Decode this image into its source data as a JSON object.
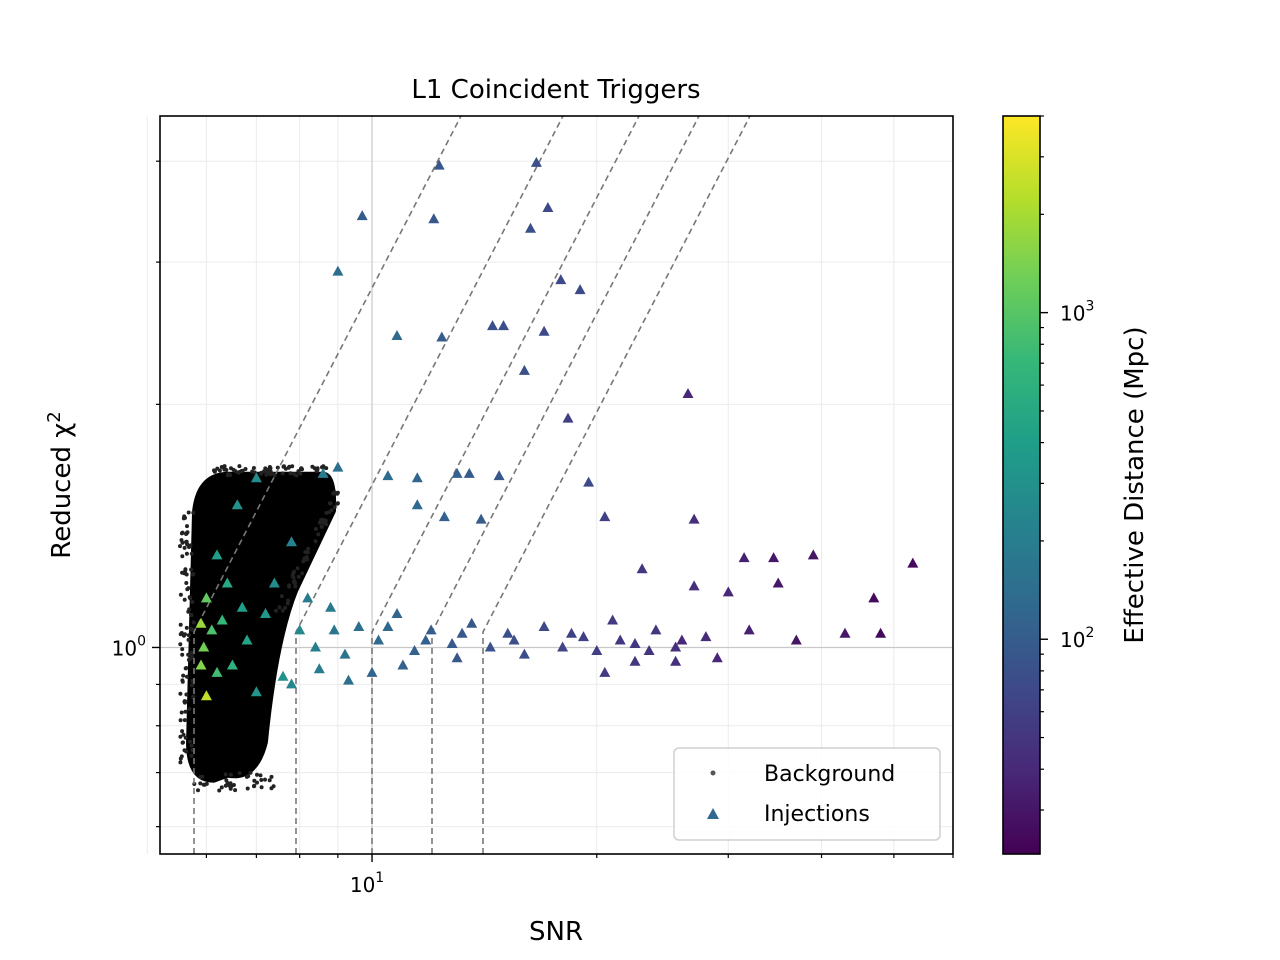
{
  "chart_data": {
    "type": "scatter",
    "title": "L1 Coincident Triggers",
    "xlabel": "SNR",
    "ylabel": "Reduced χ²",
    "xscale": "log",
    "yscale": "log",
    "xlim": [
      5.2,
      60
    ],
    "ylim": [
      0.555,
      4.55
    ],
    "x_tick_labels": [
      {
        "value": 10,
        "base": "10",
        "exp": "1"
      }
    ],
    "y_tick_labels": [
      {
        "value": 1,
        "base": "10",
        "exp": "0"
      }
    ],
    "grid": true,
    "legend": {
      "placement": "lower-right",
      "entries": [
        "Background",
        "Injections"
      ]
    },
    "colorbar": {
      "label": "Effective Distance (Mpc)",
      "scale": "log",
      "range": [
        22,
        4000
      ],
      "colormap": "viridis",
      "tick_labels": [
        {
          "value": 100,
          "base": "10",
          "exp": "2"
        },
        {
          "value": 1000,
          "base": "10",
          "exp": "3"
        }
      ]
    },
    "background": {
      "name": "Background",
      "color": "#000000",
      "region": {
        "snr_min": 5.6,
        "snr_max": 9.0,
        "chisq_min": 0.68,
        "chisq_max": 1.65
      }
    },
    "injections": {
      "name": "Injections",
      "points": [
        [
          12.3,
          3.95,
          90
        ],
        [
          16.6,
          3.98,
          80
        ],
        [
          17.2,
          3.5,
          70
        ],
        [
          9.7,
          3.42,
          100
        ],
        [
          12.1,
          3.39,
          90
        ],
        [
          16.3,
          3.3,
          80
        ],
        [
          9.0,
          2.92,
          140
        ],
        [
          17.9,
          2.85,
          70
        ],
        [
          19.0,
          2.77,
          70
        ],
        [
          10.8,
          2.43,
          130
        ],
        [
          12.4,
          2.42,
          100
        ],
        [
          14.5,
          2.5,
          80
        ],
        [
          15.0,
          2.5,
          80
        ],
        [
          17.0,
          2.46,
          70
        ],
        [
          16.0,
          2.2,
          80
        ],
        [
          26.5,
          2.06,
          40
        ],
        [
          18.3,
          1.92,
          60
        ],
        [
          8.6,
          1.64,
          200
        ],
        [
          9.0,
          1.67,
          150
        ],
        [
          10.5,
          1.63,
          140
        ],
        [
          11.5,
          1.62,
          120
        ],
        [
          13.0,
          1.64,
          110
        ],
        [
          13.5,
          1.64,
          100
        ],
        [
          14.8,
          1.63,
          90
        ],
        [
          19.5,
          1.6,
          70
        ],
        [
          11.5,
          1.5,
          130
        ],
        [
          12.5,
          1.45,
          110
        ],
        [
          14.0,
          1.44,
          100
        ],
        [
          20.5,
          1.45,
          60
        ],
        [
          27.0,
          1.44,
          45
        ],
        [
          31.5,
          1.29,
          35
        ],
        [
          34.5,
          1.29,
          30
        ],
        [
          39.0,
          1.3,
          30
        ],
        [
          53.0,
          1.27,
          25
        ],
        [
          23.0,
          1.25,
          50
        ],
        [
          35.0,
          1.2,
          30
        ],
        [
          47.0,
          1.15,
          25
        ],
        [
          27.0,
          1.19,
          45
        ],
        [
          30.0,
          1.17,
          40
        ],
        [
          37.0,
          1.02,
          30
        ],
        [
          43.0,
          1.04,
          30
        ],
        [
          48.0,
          1.04,
          25
        ],
        [
          26.0,
          1.02,
          40
        ],
        [
          29.0,
          0.97,
          40
        ],
        [
          22.5,
          0.96,
          50
        ],
        [
          25.5,
          0.96,
          45
        ],
        [
          20.5,
          0.93,
          55
        ],
        [
          13.0,
          0.97,
          90
        ],
        [
          10.0,
          0.93,
          120
        ],
        [
          11.0,
          0.95,
          110
        ],
        [
          6.0,
          0.87,
          2500
        ],
        [
          5.9,
          1.07,
          1800
        ],
        [
          5.95,
          1.0,
          1300
        ],
        [
          6.1,
          1.05,
          900
        ],
        [
          6.3,
          1.08,
          700
        ],
        [
          6.5,
          0.95,
          600
        ],
        [
          6.8,
          1.02,
          450
        ],
        [
          7.2,
          1.1,
          350
        ],
        [
          7.6,
          0.92,
          300
        ],
        [
          8.0,
          1.05,
          250
        ],
        [
          8.4,
          1.0,
          200
        ],
        [
          8.8,
          1.12,
          180
        ],
        [
          9.2,
          0.98,
          160
        ],
        [
          9.6,
          1.06,
          150
        ],
        [
          10.2,
          1.02,
          130
        ],
        [
          10.8,
          1.1,
          120
        ],
        [
          11.4,
          0.99,
          110
        ],
        [
          12.0,
          1.05,
          100
        ],
        [
          12.8,
          1.01,
          95
        ],
        [
          13.6,
          1.07,
          90
        ],
        [
          14.4,
          1.0,
          85
        ],
        [
          15.2,
          1.04,
          80
        ],
        [
          16.0,
          0.98,
          75
        ],
        [
          17.0,
          1.06,
          70
        ],
        [
          18.0,
          1.0,
          65
        ],
        [
          19.2,
          1.03,
          60
        ],
        [
          20.0,
          0.99,
          58
        ],
        [
          21.0,
          1.08,
          55
        ],
        [
          22.5,
          1.01,
          50
        ],
        [
          24.0,
          1.05,
          48
        ],
        [
          25.5,
          1.0,
          45
        ],
        [
          6.2,
          1.3,
          400
        ],
        [
          6.6,
          1.5,
          300
        ],
        [
          7.0,
          1.62,
          260
        ],
        [
          7.4,
          1.2,
          280
        ],
        [
          7.8,
          1.35,
          220
        ],
        [
          8.2,
          1.15,
          190
        ],
        [
          6.4,
          1.2,
          500
        ],
        [
          7.0,
          0.88,
          320
        ],
        [
          7.8,
          0.9,
          240
        ],
        [
          8.5,
          0.94,
          190
        ],
        [
          9.3,
          0.91,
          150
        ],
        [
          6.2,
          0.93,
          800
        ],
        [
          6.0,
          1.15,
          1100
        ],
        [
          5.9,
          0.95,
          1500
        ],
        [
          6.7,
          1.12,
          400
        ],
        [
          8.9,
          1.05,
          170
        ],
        [
          10.5,
          1.06,
          125
        ],
        [
          11.8,
          1.02,
          105
        ],
        [
          13.2,
          1.04,
          92
        ],
        [
          15.5,
          1.02,
          78
        ],
        [
          18.5,
          1.04,
          62
        ],
        [
          21.5,
          1.02,
          52
        ],
        [
          23.5,
          0.99,
          48
        ],
        [
          28.0,
          1.03,
          42
        ],
        [
          32.0,
          1.05,
          36
        ]
      ]
    }
  }
}
